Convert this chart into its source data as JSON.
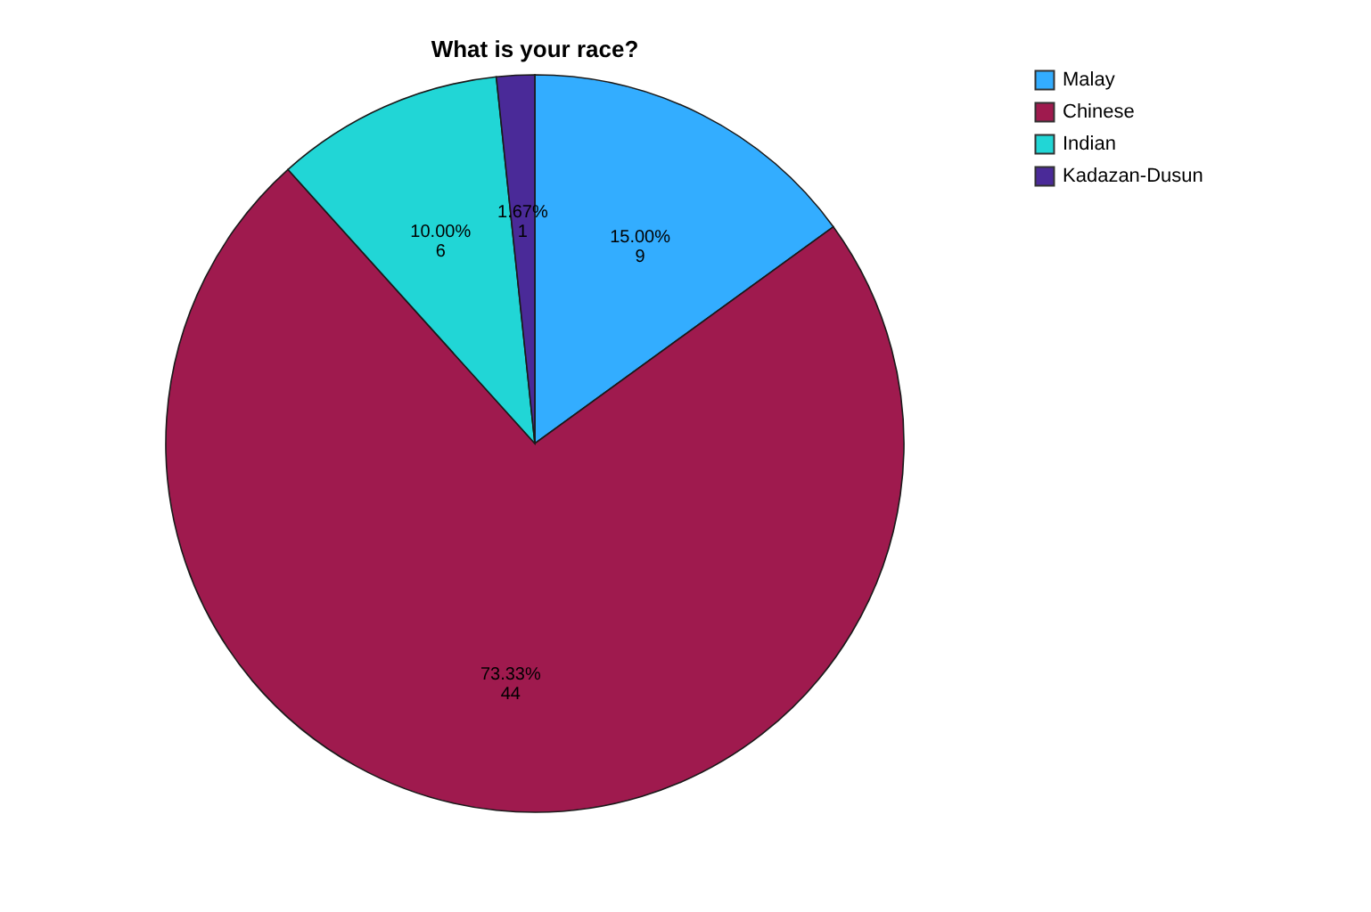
{
  "chart_data": {
    "type": "pie",
    "title": "What is your race?",
    "categories": [
      "Malay",
      "Chinese",
      "Indian",
      "Kadazan-Dusun"
    ],
    "values": [
      9,
      44,
      6,
      1
    ],
    "colors": [
      "#33adff",
      "#9f1a4e",
      "#21d6d6",
      "#4a2a98"
    ],
    "value_labels": [
      "15.00%\n9",
      "73.33%\n44",
      "10.00%\n6",
      "1.67%\n1"
    ],
    "legend": "top right"
  }
}
